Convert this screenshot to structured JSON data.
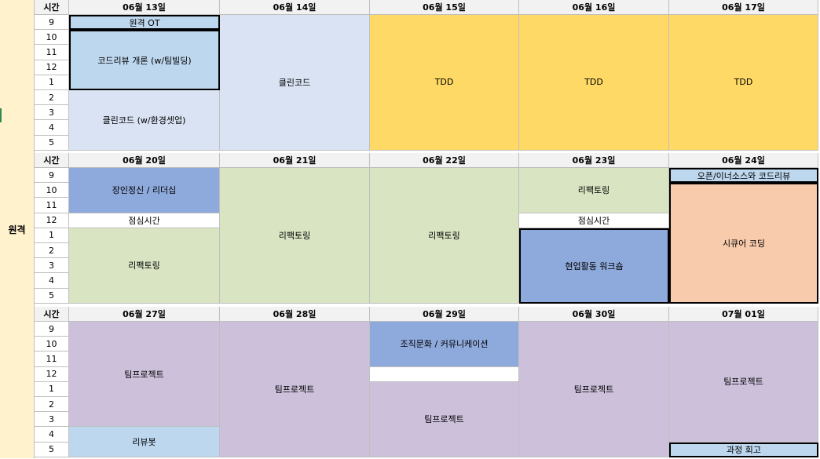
{
  "sidebar": {
    "label": "원격"
  },
  "time_header": "시간",
  "weeks": [
    {
      "days": [
        "06월 13일",
        "06월 14일",
        "06월 15일",
        "06월 16일",
        "06월 17일"
      ],
      "hours": [
        "9",
        "10",
        "11",
        "12",
        "1",
        "2",
        "3",
        "4",
        "5"
      ],
      "events": {
        "d1": [
          "원격 OT",
          "코드리뷰 개론 (w/팀빌딩)",
          "클린코드 (w/환경셋업)"
        ],
        "d2": [
          "클린코드"
        ],
        "d3": [
          "TDD"
        ],
        "d4": [
          "TDD"
        ],
        "d5": [
          "TDD"
        ]
      }
    },
    {
      "days": [
        "06월 20일",
        "06월 21일",
        "06월 22일",
        "06월 23일",
        "06월 24일"
      ],
      "hours": [
        "9",
        "10",
        "11",
        "12",
        "1",
        "2",
        "3",
        "4",
        "5"
      ],
      "events": {
        "d1": [
          "장인정신 / 리더십",
          "점심시간",
          "리팩토링"
        ],
        "d2": [
          "리팩토링"
        ],
        "d3": [
          "리팩토링"
        ],
        "d4": [
          "리팩토링",
          "점심시간",
          "현업활동 워크숍"
        ],
        "d5": [
          "오픈/이너소스와 코드리뷰",
          "시큐어 코딩"
        ]
      }
    },
    {
      "days": [
        "06월 27일",
        "06월 28일",
        "06월 29일",
        "06월 30일",
        "07월 01일"
      ],
      "hours": [
        "9",
        "10",
        "11",
        "12",
        "1",
        "2",
        "3",
        "4",
        "5"
      ],
      "events": {
        "d1": [
          "팀프로젝트",
          "리뷰봇"
        ],
        "d2": [
          "팀프로젝트"
        ],
        "d3": [
          "조직문화 / 커뮤니케이션",
          "",
          "팀프로젝트"
        ],
        "d4": [
          "팀프로젝트"
        ],
        "d5": [
          "팀프로젝트",
          "과정 회고"
        ]
      }
    }
  ],
  "colors": {
    "side": "#fff2cc",
    "header": "#f2f2f2",
    "blue_light": "#bdd7ee",
    "blue_pale": "#dae3f3",
    "gold": "#ffd966",
    "blue_mid": "#8ea9db",
    "green_pale": "#d9e4c3",
    "peach": "#f8cbad",
    "purple_pale": "#ccc0da",
    "white": "#ffffff"
  }
}
